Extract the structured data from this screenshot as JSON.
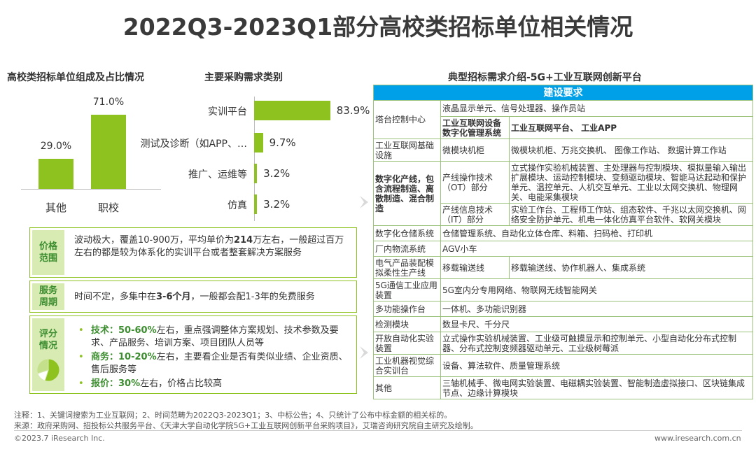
{
  "title": "2022Q3-2023Q1部分高校类招标单位相关情况",
  "left_chart": {
    "heading": "高校类招标单位组成及占比情况",
    "chart_data": {
      "type": "bar",
      "categories": [
        "其他",
        "职校"
      ],
      "values": [
        29.0,
        71.0
      ],
      "value_labels": [
        "29.0%",
        "71.0%"
      ],
      "ylim": [
        0,
        80
      ]
    }
  },
  "mid_chart": {
    "heading": "主要采购需求类别",
    "chart_data": {
      "type": "bar",
      "orientation": "horizontal",
      "categories": [
        "实训平台",
        "测试及诊断（如APP、…",
        "推广、运维等",
        "仿真"
      ],
      "values": [
        83.9,
        9.7,
        3.2,
        3.2
      ],
      "value_labels": [
        "83.9%",
        "9.7%",
        "3.2%",
        "3.2%"
      ],
      "xlim": [
        0,
        100
      ]
    }
  },
  "info": {
    "price_tag": "价格范围",
    "price_text_pre": "波动极大，覆盖10-900万，平均单价为",
    "price_bold": "214",
    "price_text_post": "万左右，一般超过百万左右的都是较为体系化的实训平台或者整套解决方案服务",
    "period_tag": "服务周期",
    "period_pre": "时间不定，多集中在",
    "period_bold": "3-6个月",
    "period_post": "，一般都会配1-3年的免费服务",
    "score_tag": "评分情况",
    "score_items": [
      {
        "bold": "技术：50-60%",
        "text": "左右，重点强调整体方案规划、技术参数及要求、产品服务、培训方案、项目团队人员等"
      },
      {
        "bold": "商务：10-20%",
        "text": "左右，主要看企业是否有类似业绩、企业资质、售后服务等"
      },
      {
        "bold": "报价：30%",
        "text": "左右，价格占比较高"
      }
    ],
    "pie_data": [
      55,
      15,
      30
    ]
  },
  "table": {
    "heading": "典型招标需求介绍-5G+工业互联网创新平台",
    "header": "建设要求",
    "r1c1": "塔台控制中心",
    "r1a": "液晶显示单元、信号处理器、操作员站",
    "r1b_left": "工业互联网设备数字化管理系统",
    "r1b_right": "工业互联网平台、 工业APP",
    "r2c1": "工业互联网基础设施",
    "r2a": "微模块机柜",
    "r2b": "微模块机柜、万兆交换机、 图像工作站、 数据计算工作站",
    "r3c1": "数字化产线，包含流程制造、离散制造、混合制造",
    "r3a_left": "产线操作技术（OT）部分",
    "r3a_right": "立式操作实验机械装置、主处理器与控制模块、模拟量输入输出扩展模块、运动控制模块、变频驱动模块、智能马达起动和保护单元、温控单元、人机交互单元、工业以太网交换机、物理网关、电能采集模块",
    "r3b_left": "产线信息技术（IT）部分",
    "r3b_right": "实验工作台、工程师工作站、组态软件、千兆以太网交换机、网络安全防护单元、机电一体化仿真平台软件、软网关模块",
    "r4c1": "数字化仓储系统",
    "r4": "仓储管理系统、自动化立体仓库、料箱、扫码枪、打印机",
    "r5c1": "厂内物流系统",
    "r5": "AGV小车",
    "r6c1": "电气产品装配模拟柔性生产线",
    "r6a": "移载输送线",
    "r6b": "移载输送线、协作机器人、集成系统",
    "r7c1": "5G通信工业应用装置",
    "r7": "5G室内分专用网络、物联网无线智能网关",
    "r8c1": "多功能操作台",
    "r8": "一体机、多功能识别器",
    "r9c1": "检测模块",
    "r9": "数显卡尺、千分尺",
    "r10c1": "开放自动化实验装置",
    "r10": "立式操作实验机械装置、工业级可触摸显示和控制单元、小型自动化分布式控制器、分布式控制变频器驱动单元、工业级树莓派",
    "r11c1": "工业机器视觉综合实训台",
    "r11": "设备、算法软件、质量管理系统",
    "r12c1": "其他",
    "r12": "三轴机械手、微电网实验装置、电磁耦实验装置、智能制造虚拟接口、区块链集成节点、边缘计算模块"
  },
  "footer": {
    "note": "注释：1、关键词搜索为工业互联网；2、时间范畴为2022Q3-2023Q1；3、中标公告；4、只统计了公布中标金额的相关标的。",
    "source": "来源：政府采购网、招投标公共服务平台、《天津大学自动化学院5G+工业互联网创新平台采购项目》，艾瑞咨询研究院自主研究及绘制。",
    "copyright": "©2023.7 iResearch Inc.",
    "website": "www.iresearch.com.cn"
  },
  "colors": {
    "accent_green": "#8dc21f",
    "header_blue": "#00a0e9",
    "tag_bg": "#d8ebb2",
    "tag_text": "#3c8d2f"
  }
}
